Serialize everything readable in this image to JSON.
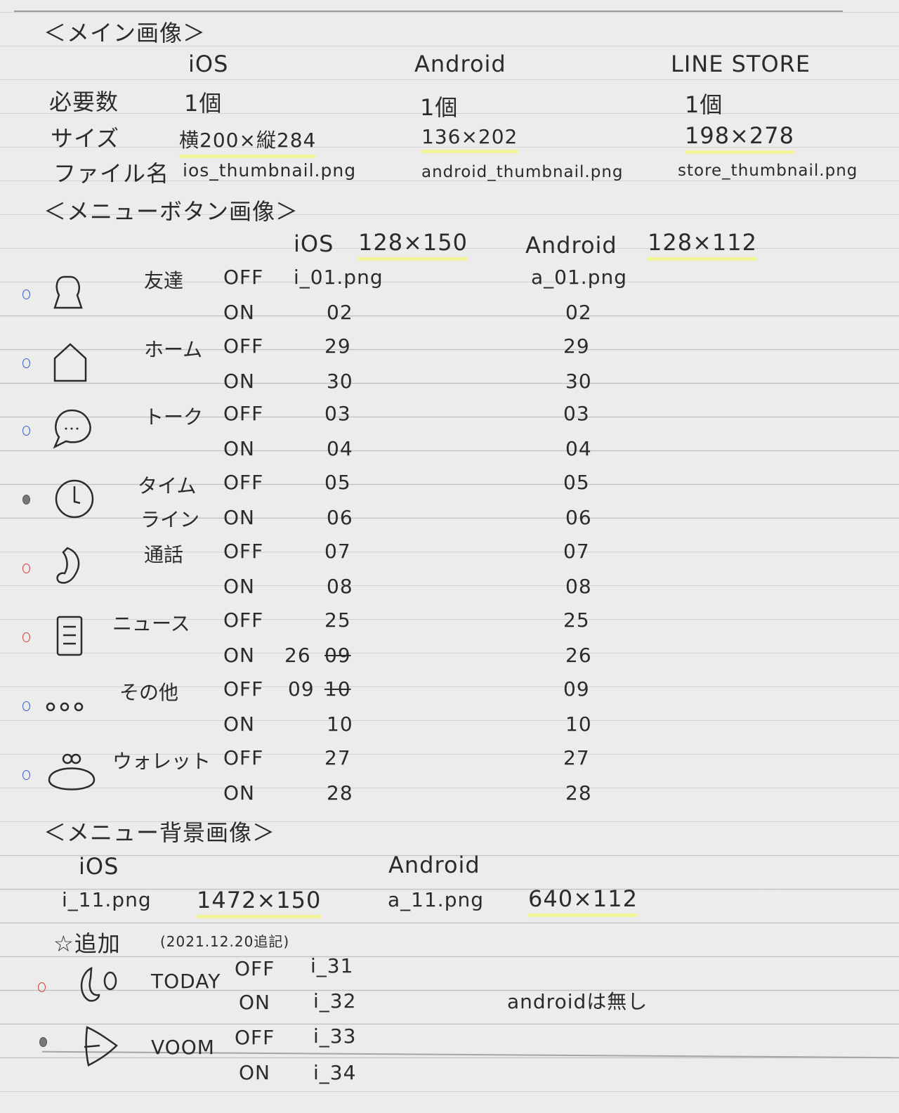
{
  "main_image": {
    "title": "＜メイン画像＞",
    "columns": [
      "iOS",
      "Android",
      "LINE STORE"
    ],
    "rows": [
      {
        "label": "必要数",
        "values": [
          "1個",
          "1個",
          "1個"
        ]
      },
      {
        "label": "サイズ",
        "values": [
          "横200×縦284",
          "136×202",
          "198×278"
        ]
      },
      {
        "label": "ファイル名",
        "values": [
          "ios_thumbnail.png",
          "android_thumbnail.png",
          "store_thumbnail.png"
        ]
      }
    ]
  },
  "menu_buttons": {
    "title": "＜メニューボタン画像＞",
    "ios_header": "iOS",
    "ios_size": "128×150",
    "android_header": "Android",
    "android_size": "128×112",
    "items": [
      {
        "icon": "friends-icon",
        "dot_color": "#3a5fc8",
        "name": "友達",
        "off": "OFF",
        "on": "ON",
        "ios_off": "i_01.png",
        "ios_on": "02",
        "android_off": "a_01.png",
        "android_on": "02"
      },
      {
        "icon": "home-icon",
        "dot_color": "#3a5fc8",
        "name": "ホーム",
        "off": "OFF",
        "on": "ON",
        "ios_off": "29",
        "ios_on": "30",
        "android_off": "29",
        "android_on": "30"
      },
      {
        "icon": "talk-icon",
        "dot_color": "#3a5fc8",
        "name": "トーク",
        "off": "OFF",
        "on": "ON",
        "ios_off": "03",
        "ios_on": "04",
        "android_off": "03",
        "android_on": "04"
      },
      {
        "icon": "clock-icon",
        "dot_color": "#555555",
        "name": "タイムライン",
        "name_line1": "タイム",
        "name_line2": "ライン",
        "off": "OFF",
        "on": "ON",
        "ios_off": "05",
        "ios_on": "06",
        "android_off": "05",
        "android_on": "06"
      },
      {
        "icon": "phone-icon",
        "dot_color": "#d04040",
        "name": "通話",
        "off": "OFF",
        "on": "ON",
        "ios_off": "07",
        "ios_on": "08",
        "android_off": "07",
        "android_on": "08"
      },
      {
        "icon": "news-icon",
        "dot_color": "#d04040",
        "name": "ニュース",
        "off": "OFF",
        "on": "ON",
        "ios_off": "25",
        "ios_on": "26",
        "ios_on_struck": "09",
        "android_off": "25",
        "android_on": "26"
      },
      {
        "icon": "more-icon",
        "dot_color": "#3a5fc8",
        "name": "その他",
        "off": "OFF",
        "on": "ON",
        "ios_off": "09",
        "ios_off_struck": "10",
        "ios_on": "10",
        "android_off": "09",
        "android_on": "10"
      },
      {
        "icon": "wallet-icon",
        "dot_color": "#3a5fc8",
        "name": "ウォレット",
        "off": "OFF",
        "on": "ON",
        "ios_off": "27",
        "ios_on": "28",
        "android_off": "27",
        "android_on": "28"
      }
    ]
  },
  "menu_background": {
    "title": "＜メニュー背景画像＞",
    "ios_header": "iOS",
    "ios_file": "i_11.png",
    "ios_size": "1472×150",
    "android_header": "Android",
    "android_file": "a_11.png",
    "android_size": "640×112"
  },
  "addition": {
    "title": "☆追加",
    "note": "(2021.12.20追記)",
    "android_note": "androidは無し",
    "items": [
      {
        "icon": "today-icon",
        "dot_color": "#d04040",
        "name": "TODAY",
        "off": "OFF",
        "on": "ON",
        "ios_off": "i_31",
        "ios_on": "i_32"
      },
      {
        "icon": "voom-icon",
        "dot_color": "#555555",
        "name": "VOOM",
        "off": "OFF",
        "on": "ON",
        "ios_off": "i_33",
        "ios_on": "i_34"
      }
    ]
  }
}
